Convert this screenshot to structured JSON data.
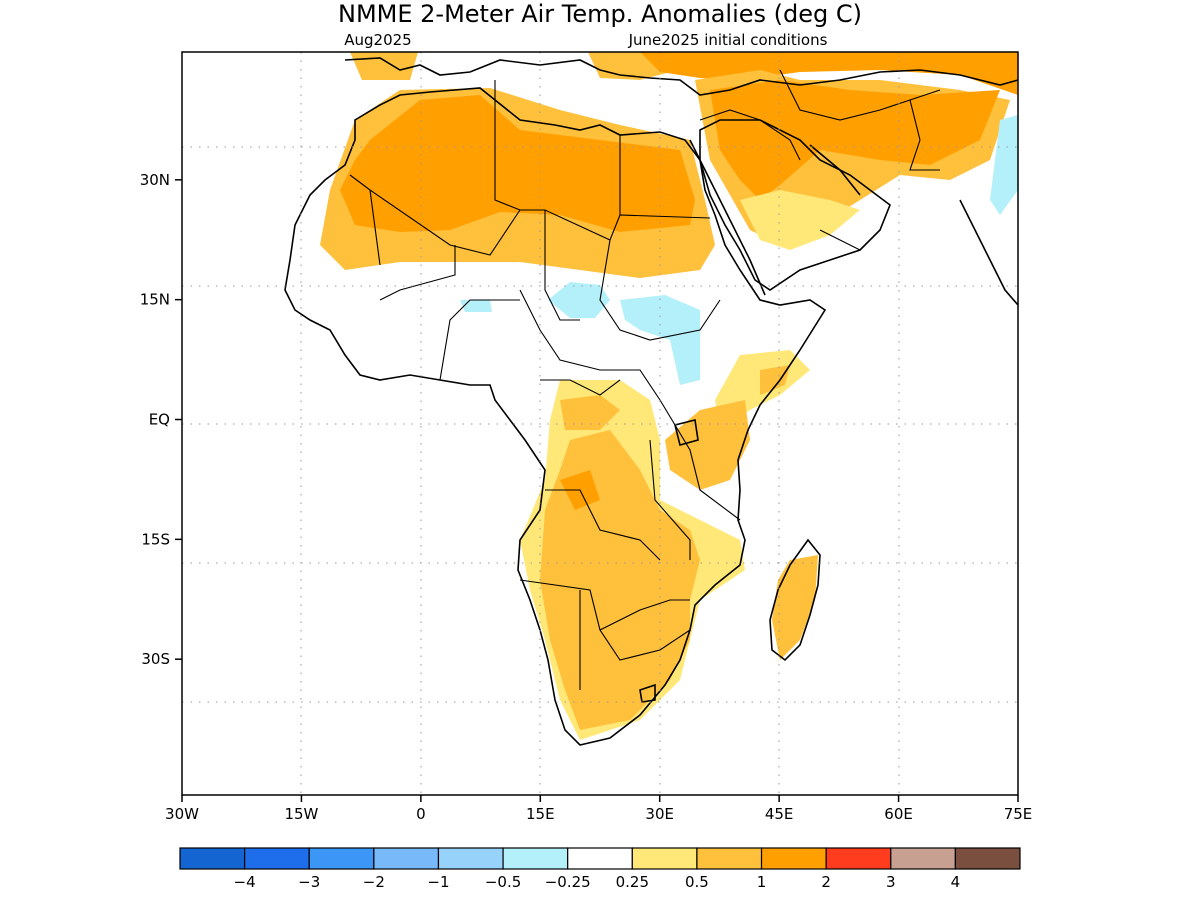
{
  "title": "NMME 2-Meter Air Temp. Anomalies (deg C)",
  "subtitle_left": "Aug2025",
  "subtitle_right": "June2025 initial conditions",
  "map": {
    "lon_range": [
      -30,
      75
    ],
    "lat_range": [
      -47,
      46
    ],
    "grid": "dotted",
    "x_ticks": [
      {
        "value": -30,
        "label": "30W"
      },
      {
        "value": -15,
        "label": "15W"
      },
      {
        "value": 0,
        "label": "0"
      },
      {
        "value": 15,
        "label": "15E"
      },
      {
        "value": 30,
        "label": "30E"
      },
      {
        "value": 45,
        "label": "45E"
      },
      {
        "value": 60,
        "label": "60E"
      },
      {
        "value": 75,
        "label": "75E"
      }
    ],
    "y_ticks": [
      {
        "value": 30,
        "label": "30N"
      },
      {
        "value": 15,
        "label": "15N"
      },
      {
        "value": 0,
        "label": "EQ"
      },
      {
        "value": -15,
        "label": "15S"
      },
      {
        "value": -30,
        "label": "30S"
      }
    ]
  },
  "colorbar": {
    "colors": [
      "#1464d2",
      "#1e6eeb",
      "#3c96f5",
      "#78b9fa",
      "#96d2fa",
      "#b4f0fa",
      "#ffffff",
      "#ffe878",
      "#ffc03c",
      "#ffa000",
      "#ff3c1e",
      "#c8a092",
      "#7a4f3f"
    ],
    "labels": [
      "−4",
      "−3",
      "−2",
      "−1",
      "−0.5",
      "−0.25",
      "0.25",
      "0.5",
      "1",
      "2",
      "3",
      "4"
    ]
  },
  "anomaly_colors": {
    "strong_warm": "#ffa000",
    "warm": "#ffc03c",
    "slight_warm": "#ffe878",
    "slight_cool": "#b4f0fa"
  }
}
